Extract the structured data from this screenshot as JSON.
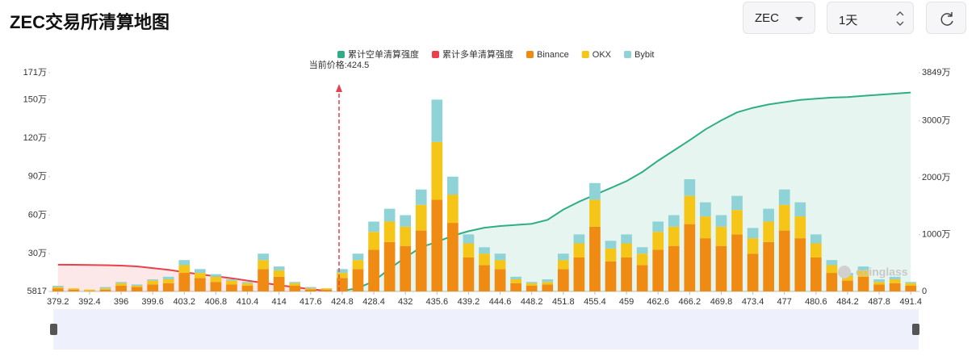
{
  "header": {
    "title": "ZEC交易所清算地图",
    "symbol": "ZEC",
    "period": "1天"
  },
  "chart_data": {
    "type": "bar",
    "annotation": "当前价格:424.5",
    "watermark": "coinglass",
    "categories": [
      "379.2",
      null,
      "392.4",
      null,
      "396",
      null,
      "399.6",
      null,
      "403.2",
      null,
      "406.8",
      null,
      "410.4",
      null,
      "414",
      null,
      "417.6",
      null,
      "424.8",
      null,
      "428.4",
      null,
      "432",
      null,
      "435.6",
      null,
      "439.2",
      null,
      "444.6",
      null,
      "448.2",
      null,
      "451.8",
      null,
      "455.4",
      null,
      "459",
      null,
      "462.6",
      null,
      "466.2",
      null,
      "469.8",
      null,
      "473.4",
      null,
      "477",
      null,
      "480.6",
      null,
      "484.2",
      null,
      "487.8",
      null,
      "491.4"
    ],
    "series": [
      {
        "name": "累计空单清算强度",
        "type": "line",
        "axis": "y2",
        "color": "#2fae86",
        "values": [
          null,
          null,
          null,
          null,
          null,
          null,
          null,
          null,
          null,
          null,
          null,
          null,
          null,
          null,
          null,
          null,
          null,
          null,
          100000,
          600000,
          1800000,
          4000000,
          6000000,
          7800000,
          8700000,
          9800000,
          10600000,
          11200000,
          11500000,
          11700000,
          11900000,
          12600000,
          14400000,
          15800000,
          17000000,
          18200000,
          19400000,
          21000000,
          23000000,
          24800000,
          26600000,
          28500000,
          30100000,
          31500000,
          32300000,
          32900000,
          33300000,
          33700000,
          33900000,
          34100000,
          34200000,
          34400000,
          34600000,
          34800000,
          35000000
        ]
      },
      {
        "name": "累计多单清算强度",
        "type": "line",
        "axis": "y2",
        "color": "#e8404c",
        "values": [
          4700000,
          4680000,
          4660000,
          4620000,
          4550000,
          4400000,
          4100000,
          3800000,
          3400000,
          3000000,
          2650000,
          2300000,
          1900000,
          1500000,
          1100000,
          750000,
          400000,
          100000,
          null,
          null,
          null,
          null,
          null,
          null,
          null,
          null,
          null,
          null,
          null,
          null,
          null,
          null,
          null,
          null,
          null,
          null,
          null,
          null,
          null,
          null,
          null,
          null,
          null,
          null,
          null,
          null,
          null,
          null,
          null,
          null,
          null,
          null,
          null,
          null,
          null
        ]
      },
      {
        "name": "Binance",
        "type": "bar",
        "color": "#ef8a12",
        "values": [
          30000,
          20000,
          10000,
          20000,
          50000,
          40000,
          60000,
          70000,
          150000,
          110000,
          80000,
          60000,
          50000,
          180000,
          120000,
          50000,
          20000,
          20000,
          110000,
          180000,
          330000,
          390000,
          360000,
          480000,
          720000,
          540000,
          270000,
          210000,
          180000,
          70000,
          50000,
          60000,
          180000,
          270000,
          510000,
          240000,
          270000,
          210000,
          330000,
          360000,
          530000,
          420000,
          360000,
          450000,
          300000,
          390000,
          480000,
          420000,
          270000,
          150000,
          90000,
          120000,
          60000,
          70000,
          50000
        ]
      },
      {
        "name": "OKX",
        "type": "bar",
        "color": "#f5c518",
        "values": [
          10000,
          10000,
          10000,
          10000,
          20000,
          10000,
          30000,
          30000,
          60000,
          40000,
          40000,
          30000,
          20000,
          70000,
          50000,
          20000,
          10000,
          10000,
          40000,
          70000,
          140000,
          160000,
          150000,
          200000,
          450000,
          220000,
          110000,
          90000,
          70000,
          30000,
          20000,
          20000,
          70000,
          110000,
          210000,
          100000,
          110000,
          90000,
          140000,
          150000,
          220000,
          170000,
          150000,
          190000,
          120000,
          160000,
          200000,
          170000,
          110000,
          60000,
          40000,
          50000,
          20000,
          30000,
          20000
        ]
      },
      {
        "name": "Bybit",
        "type": "bar",
        "color": "#8fd3d6",
        "values": [
          10000,
          0,
          0,
          10000,
          10000,
          10000,
          10000,
          20000,
          40000,
          30000,
          20000,
          10000,
          10000,
          50000,
          30000,
          10000,
          10000,
          0,
          30000,
          50000,
          80000,
          100000,
          90000,
          120000,
          330000,
          140000,
          70000,
          50000,
          50000,
          20000,
          10000,
          20000,
          50000,
          70000,
          130000,
          60000,
          70000,
          50000,
          80000,
          90000,
          130000,
          110000,
          90000,
          110000,
          80000,
          100000,
          120000,
          110000,
          70000,
          40000,
          20000,
          30000,
          20000,
          20000,
          10000
        ]
      }
    ],
    "ylim": [
      5817,
      1710000
    ],
    "yticks": [
      5817,
      {
        "value": 300000,
        "label": "30万"
      },
      {
        "value": 600000,
        "label": "60万"
      },
      {
        "value": 900000,
        "label": "90万"
      },
      {
        "value": 1200000,
        "label": "120万"
      },
      {
        "value": 1500000,
        "label": "150万"
      },
      {
        "value": 1710000,
        "label": "171万"
      }
    ],
    "y2lim": [
      0,
      38490000
    ],
    "y2ticks": [
      0,
      {
        "value": 10000000,
        "label": "1000万"
      },
      {
        "value": 20000000,
        "label": "2000万"
      },
      {
        "value": 30000000,
        "label": "3000万"
      },
      {
        "value": 38490000,
        "label": "3849万"
      }
    ]
  }
}
